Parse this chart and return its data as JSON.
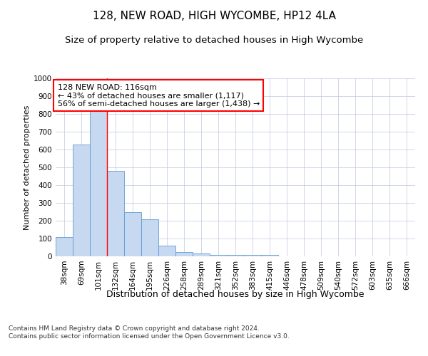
{
  "title1": "128, NEW ROAD, HIGH WYCOMBE, HP12 4LA",
  "title2": "Size of property relative to detached houses in High Wycombe",
  "xlabel": "Distribution of detached houses by size in High Wycombe",
  "ylabel": "Number of detached properties",
  "footnote": "Contains HM Land Registry data © Crown copyright and database right 2024.\nContains public sector information licensed under the Open Government Licence v3.0.",
  "bar_labels": [
    "38sqm",
    "69sqm",
    "101sqm",
    "132sqm",
    "164sqm",
    "195sqm",
    "226sqm",
    "258sqm",
    "289sqm",
    "321sqm",
    "352sqm",
    "383sqm",
    "415sqm",
    "446sqm",
    "478sqm",
    "509sqm",
    "540sqm",
    "572sqm",
    "603sqm",
    "635sqm",
    "666sqm"
  ],
  "bar_values": [
    110,
    630,
    820,
    480,
    250,
    207,
    60,
    25,
    18,
    10,
    10,
    10,
    10,
    0,
    0,
    0,
    0,
    0,
    0,
    0,
    0
  ],
  "bar_color": "#c6d9f0",
  "bar_edge_color": "#5b9bd5",
  "grid_color": "#c0c8e0",
  "background_color": "#ffffff",
  "annotation_text": "128 NEW ROAD: 116sqm\n← 43% of detached houses are smaller (1,117)\n56% of semi-detached houses are larger (1,438) →",
  "red_line_x": 2.5,
  "ylim": [
    0,
    1000
  ],
  "yticks": [
    0,
    100,
    200,
    300,
    400,
    500,
    600,
    700,
    800,
    900,
    1000
  ],
  "title1_fontsize": 11,
  "title2_fontsize": 9.5,
  "xlabel_fontsize": 9,
  "ylabel_fontsize": 8,
  "tick_fontsize": 7.5,
  "annotation_fontsize": 8
}
